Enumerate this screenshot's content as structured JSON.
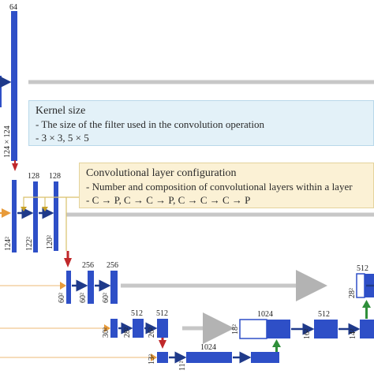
{
  "labels": {
    "top_channels": "64",
    "dim_124": "124 × 124",
    "ch_128a": "128",
    "ch_128b": "128",
    "dim_124sq": "124²",
    "dim_122sq": "122²",
    "dim_120sq": "120²",
    "ch_256a": "256",
    "ch_256b": "256",
    "dim_60sq_a": "60²",
    "dim_60sq_b": "60²",
    "dim_60sq_c": "60²",
    "ch_512a": "512",
    "ch_512b": "512",
    "ch_512c": "512",
    "ch_512d": "512",
    "dim_30sq": "30²",
    "dim_28sq": "28²",
    "dim_26sq": "26²",
    "dim_13sq": "13²",
    "dim_11sq": "11²",
    "ch_1024a": "1024",
    "ch_1024b": "1024",
    "dim_18sq": "18²",
    "dim_16sq": "16²",
    "dim_14sq": "14²",
    "dim_28sq_r": "28²"
  },
  "kernel_note": {
    "title": "Kernel size",
    "lines": [
      "- The size of the filter used in the convolution operation",
      "- 3 × 3, 5 × 5"
    ]
  },
  "conv_note": {
    "title": "Convolutional layer configuration",
    "lines": [
      "- Number and composition of convolutional layers within a layer",
      "- C → P,  C → C → P,  C → C → C → P"
    ]
  },
  "colors": {
    "block": "#2e4fc7",
    "arrow_blue": "#1f3a8a",
    "arrow_red": "#c0282a",
    "arrow_green": "#2f8f3a",
    "arrow_orange": "#e89b3a",
    "arrow_gold": "#c9a227",
    "skip_gray": "#b3b3b3"
  }
}
